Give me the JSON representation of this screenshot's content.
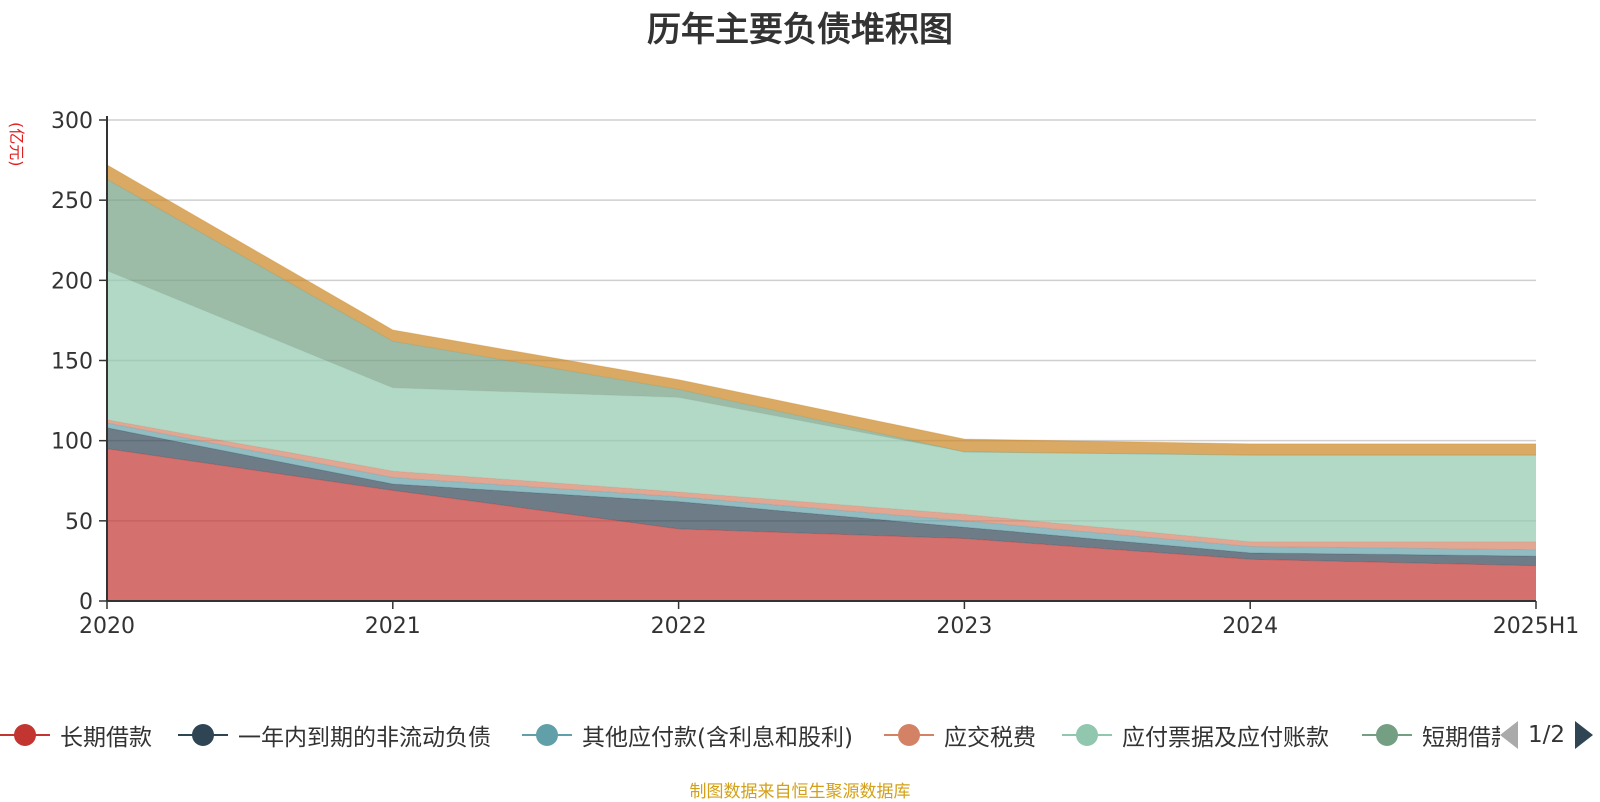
{
  "title": "历年主要负债堆积图",
  "source_note": "制图数据来自恒生聚源数据库",
  "pager": {
    "label": "1/2"
  },
  "chart_data": {
    "type": "area",
    "stacked": true,
    "title": "历年主要负债堆积图",
    "ylabel": "(亿元)",
    "ylim": [
      0,
      300
    ],
    "yticks": [
      0,
      50,
      100,
      150,
      200,
      250,
      300
    ],
    "grid": true,
    "legend_position": "bottom",
    "categories": [
      "2020",
      "2021",
      "2022",
      "2023",
      "2024",
      "2025H1"
    ],
    "series": [
      {
        "name": "长期借款",
        "color": "#c23531",
        "values": [
          95,
          69,
          45,
          39,
          26,
          22
        ]
      },
      {
        "name": "一年内到期的非流动负债",
        "color": "#2f4554",
        "values": [
          13,
          4,
          17,
          7,
          4,
          6
        ]
      },
      {
        "name": "其他应付款(含利息和股利)",
        "color": "#61a0a8",
        "values": [
          3,
          4,
          3,
          4,
          4,
          4
        ]
      },
      {
        "name": "应交税费",
        "color": "#d48265",
        "values": [
          2,
          4,
          3,
          4,
          3,
          5
        ]
      },
      {
        "name": "应付票据及应付账款",
        "color": "#91c7ae",
        "values": [
          93,
          52,
          59,
          39,
          54,
          54
        ]
      },
      {
        "name": "短期借款",
        "color": "#749f83",
        "values": [
          57,
          29,
          5,
          0,
          0,
          0
        ]
      },
      {
        "name": "",
        "color": "#ca8622",
        "values": [
          9,
          7,
          6,
          8,
          7,
          7
        ]
      }
    ]
  }
}
